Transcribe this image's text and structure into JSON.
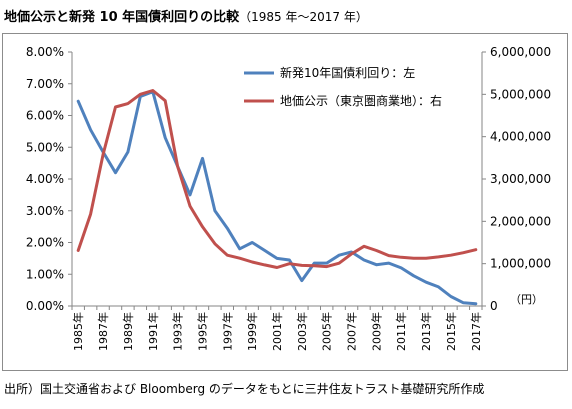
{
  "title": {
    "main": "地価公示と新発 10 年国債利回りの比較",
    "sub": "（1985 年～2017 年）"
  },
  "source": "出所）国土交通省および Bloomberg のデータをもとに三井住友トラスト基礎研究所作成",
  "chart_data": {
    "type": "line",
    "title": "地価公示と新発 10 年国債利回りの比較（1985 年～2017 年）",
    "x": [
      1985,
      1986,
      1987,
      1988,
      1989,
      1990,
      1991,
      1992,
      1993,
      1994,
      1995,
      1996,
      1997,
      1998,
      1999,
      2000,
      2001,
      2002,
      2003,
      2004,
      2005,
      2006,
      2007,
      2008,
      2009,
      2010,
      2011,
      2012,
      2013,
      2014,
      2015,
      2016,
      2017
    ],
    "x_tick_labels": [
      "1985年",
      "1987年",
      "1989年",
      "1991年",
      "1993年",
      "1995年",
      "1997年",
      "1999年",
      "2001年",
      "2003年",
      "2005年",
      "2007年",
      "2009年",
      "2011年",
      "2013年",
      "2015年",
      "2017年"
    ],
    "y_left": {
      "range": [
        0,
        8
      ],
      "tick_labels": [
        "0.00%",
        "1.00%",
        "2.00%",
        "3.00%",
        "4.00%",
        "5.00%",
        "6.00%",
        "7.00%",
        "8.00%"
      ]
    },
    "y_right": {
      "range": [
        0,
        6000000
      ],
      "tick_labels": [
        "0",
        "1,000,000",
        "2,000,000",
        "3,000,000",
        "4,000,000",
        "5,000,000",
        "6,000,000"
      ],
      "unit_label": "（円）"
    },
    "legend_position": "top-right",
    "grid": false,
    "series": [
      {
        "name": "新発10年国債利回り：左",
        "axis": "left",
        "color": "#4f81bd",
        "unit": "%",
        "values": [
          6.45,
          5.55,
          4.85,
          4.2,
          4.85,
          6.6,
          6.75,
          5.3,
          4.4,
          3.5,
          4.65,
          3.0,
          2.45,
          1.8,
          2.0,
          1.75,
          1.5,
          1.45,
          0.8,
          1.35,
          1.35,
          1.6,
          1.7,
          1.45,
          1.3,
          1.35,
          1.2,
          0.95,
          0.75,
          0.6,
          0.3,
          0.1,
          0.07
        ]
      },
      {
        "name": "地価公示（東京圏商業地）：右",
        "axis": "right",
        "color": "#c0504d",
        "unit": "円",
        "values": [
          1310000,
          2170000,
          3580000,
          4700000,
          4780000,
          5000000,
          5090000,
          4850000,
          3300000,
          2360000,
          1870000,
          1470000,
          1200000,
          1130000,
          1040000,
          970000,
          910000,
          1000000,
          960000,
          950000,
          930000,
          1010000,
          1230000,
          1410000,
          1310000,
          1190000,
          1150000,
          1130000,
          1130000,
          1160000,
          1200000,
          1260000,
          1330000
        ]
      }
    ]
  }
}
